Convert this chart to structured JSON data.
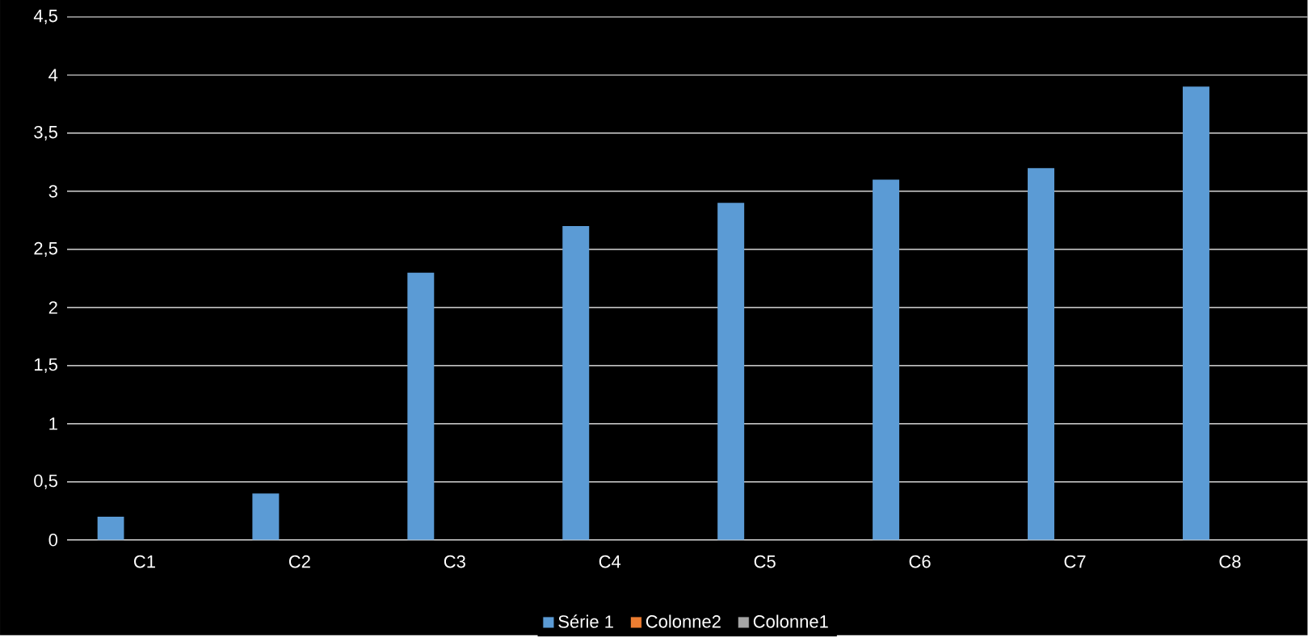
{
  "chart_data": {
    "type": "bar",
    "categories": [
      "C1",
      "C2",
      "C3",
      "C4",
      "C5",
      "C6",
      "C7",
      "C8"
    ],
    "series": [
      {
        "name": "Série 1",
        "color": "#5b9bd5",
        "values": [
          0.2,
          0.4,
          2.3,
          2.7,
          2.9,
          3.1,
          3.2,
          3.9
        ]
      },
      {
        "name": "Colonne2",
        "color": "#ed7d31",
        "values": [
          null,
          null,
          null,
          null,
          null,
          null,
          null,
          null
        ]
      },
      {
        "name": "Colonne1",
        "color": "#a5a5a5",
        "values": [
          null,
          null,
          null,
          null,
          null,
          null,
          null,
          null
        ]
      }
    ],
    "ylim": [
      0,
      4.5
    ],
    "yticks": [
      0,
      {
        "value": 0.5,
        "label": "0,5"
      },
      1,
      {
        "value": 1.5,
        "label": "1,5"
      },
      2,
      {
        "value": 2.5,
        "label": "2,5"
      },
      3,
      {
        "value": 3.5,
        "label": "3,5"
      },
      4,
      {
        "value": 4.5,
        "label": "4,5"
      }
    ],
    "grid": "y",
    "legend": "bottom"
  }
}
